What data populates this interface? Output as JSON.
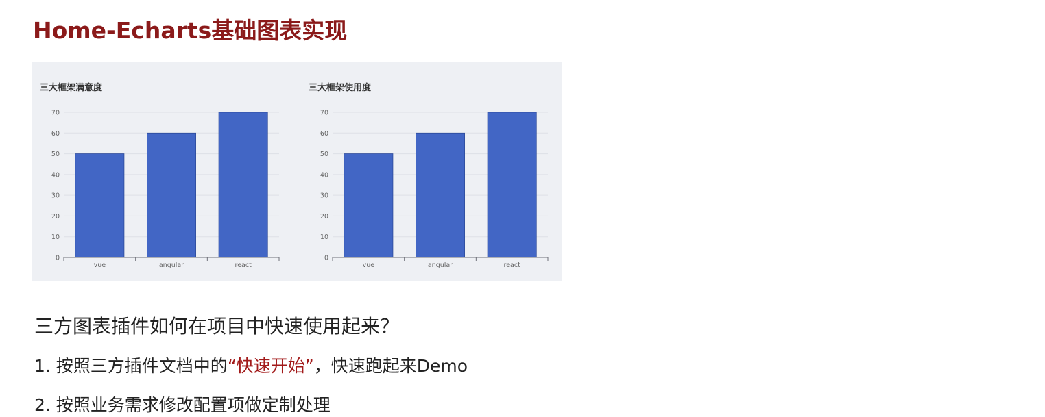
{
  "page": {
    "title": "Home-Echarts基础图表实现",
    "question": "三方图表插件如何在项目中快速使用起来？",
    "step1": {
      "prefix": "1. 按照三方插件文档中的",
      "highlight": "“快速开始”",
      "suffix": "，快速跑起来Demo"
    },
    "step2": "2. 按照业务需求修改配置项做定制处理",
    "accent_color": "#a21a1a"
  },
  "chart_data": [
    {
      "type": "bar",
      "title": "三大框架满意度",
      "categories": [
        "vue",
        "angular",
        "react"
      ],
      "values": [
        50,
        60,
        70
      ],
      "ylim": [
        0,
        70
      ],
      "yticks": [
        0,
        10,
        20,
        30,
        40,
        50,
        60,
        70
      ],
      "bar_color": "#4266c5",
      "grid": true
    },
    {
      "type": "bar",
      "title": "三大框架使用度",
      "categories": [
        "vue",
        "angular",
        "react"
      ],
      "values": [
        50,
        60,
        70
      ],
      "ylim": [
        0,
        70
      ],
      "yticks": [
        0,
        10,
        20,
        30,
        40,
        50,
        60,
        70
      ],
      "bar_color": "#4266c5",
      "grid": true
    }
  ]
}
